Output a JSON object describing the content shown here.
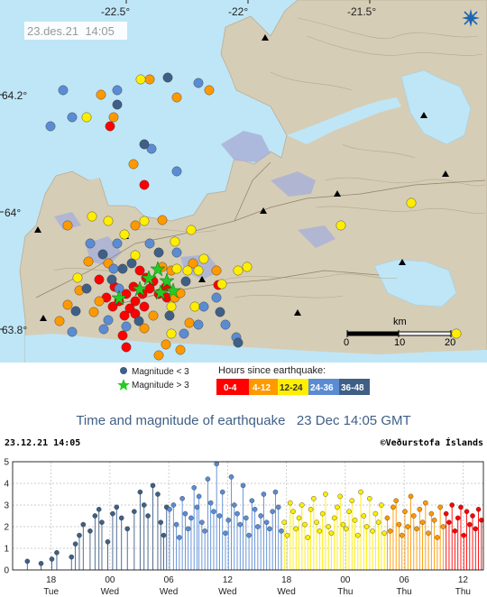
{
  "map": {
    "timestamp": "23.des.21  14:05",
    "lon_labels": [
      "-22.5°",
      "-22°",
      "-21.5°"
    ],
    "lat_labels": [
      "64.2°",
      "64°",
      "63.8°"
    ],
    "scale": {
      "unit": "km",
      "ticks": [
        "0",
        "10",
        "20"
      ]
    },
    "logo_icon": "imo-snowflake-icon",
    "colors": {
      "sea": "#bfe6f6",
      "land": "#d6cdb6",
      "ice": "#aab2d8",
      "age_0_4": "#ff0000",
      "age_4_12": "#ff9900",
      "age_12_24": "#ffee00",
      "age_24_36": "#5b8cd3",
      "age_36_48": "#3f5f86",
      "star": "#22cc22"
    }
  },
  "legend": {
    "mag_small": "Magnitude < 3",
    "mag_large": "Magnitude > 3",
    "hours_title": "Hours since earthquake:",
    "bins": [
      {
        "label": "0-4",
        "color": "#ff0000"
      },
      {
        "label": "4-12",
        "color": "#ff9900"
      },
      {
        "label": "12-24",
        "color": "#ffee00"
      },
      {
        "label": "24-36",
        "color": "#5b8cd3"
      },
      {
        "label": "36-48",
        "color": "#3f5f86"
      }
    ]
  },
  "chart_header": {
    "title": "Time and magnitude of earthquake   23 Dec 14:05 GMT",
    "timestamp": "23.12.21 14:05",
    "credit": "©Veðurstofa Íslands"
  },
  "chart_data": {
    "type": "scatter",
    "title": "Time and magnitude of earthquake   23 Dec 14:05 GMT",
    "ylim": [
      0,
      5
    ],
    "y_ticks": [
      "0",
      "1",
      "2",
      "3",
      "4",
      "5"
    ],
    "x_range_hours": [
      -48,
      0
    ],
    "x_ticks": [
      {
        "hour": -44.08,
        "time": "18",
        "day": "Tue"
      },
      {
        "hour": -38.08,
        "time": "00",
        "day": "Wed"
      },
      {
        "hour": -32.08,
        "time": "06",
        "day": "Wed"
      },
      {
        "hour": -26.08,
        "time": "12",
        "day": "Wed"
      },
      {
        "hour": -20.08,
        "time": "18",
        "day": "Wed"
      },
      {
        "hour": -14.08,
        "time": "00",
        "day": "Thu"
      },
      {
        "hour": -8.08,
        "time": "06",
        "day": "Thu"
      },
      {
        "hour": -2.08,
        "time": "12",
        "day": "Thu"
      }
    ],
    "series": [
      {
        "name": "36-48",
        "color": "#3f5f86",
        "x": [
          -46.5,
          -45.1,
          -44.0,
          -43.5,
          -42.0,
          -41.6,
          -41.2,
          -40.8,
          -40.1,
          -39.6,
          -39.2,
          -38.9,
          -38.3,
          -37.8,
          -37.4,
          -36.9,
          -36.3,
          -35.6,
          -35.0,
          -34.6,
          -34.2,
          -33.7,
          -33.2,
          -32.9,
          -32.6,
          -32.3
        ],
        "y": [
          0.4,
          0.3,
          0.5,
          0.8,
          0.6,
          1.2,
          1.6,
          2.1,
          1.8,
          2.5,
          2.8,
          2.2,
          1.3,
          2.6,
          2.9,
          2.4,
          1.9,
          2.7,
          3.6,
          3.0,
          2.5,
          3.9,
          3.5,
          2.2,
          1.6,
          2.9
        ]
      },
      {
        "name": "24-36",
        "color": "#5b8cd3",
        "x": [
          -32.0,
          -31.6,
          -31.3,
          -31.0,
          -30.7,
          -30.4,
          -30.1,
          -29.8,
          -29.5,
          -29.2,
          -29.0,
          -28.7,
          -28.4,
          -28.1,
          -27.8,
          -27.5,
          -27.2,
          -26.9,
          -26.6,
          -26.3,
          -26.0,
          -25.7,
          -25.4,
          -25.1,
          -24.8,
          -24.5,
          -24.2,
          -23.9,
          -23.6,
          -23.3,
          -23.0,
          -22.7,
          -22.4,
          -22.1,
          -21.8,
          -21.5,
          -21.2,
          -20.9,
          -20.6
        ],
        "y": [
          2.8,
          3.0,
          2.1,
          1.5,
          3.3,
          2.6,
          1.9,
          2.4,
          3.8,
          2.9,
          3.4,
          2.2,
          1.8,
          4.2,
          3.1,
          2.7,
          4.9,
          2.5,
          3.6,
          1.7,
          2.3,
          4.3,
          3.0,
          2.6,
          2.1,
          3.9,
          2.4,
          1.6,
          3.2,
          2.8,
          2.0,
          2.5,
          3.5,
          2.2,
          1.9,
          2.7,
          3.6,
          2.9,
          1.8
        ]
      },
      {
        "name": "12-24",
        "color": "#ffee00",
        "x": [
          -20.3,
          -20.0,
          -19.7,
          -19.4,
          -19.1,
          -18.8,
          -18.5,
          -18.2,
          -17.9,
          -17.6,
          -17.3,
          -17.0,
          -16.7,
          -16.4,
          -16.1,
          -15.8,
          -15.5,
          -15.2,
          -14.9,
          -14.6,
          -14.3,
          -14.0,
          -13.7,
          -13.4,
          -13.1,
          -12.8,
          -12.5,
          -12.2,
          -11.9,
          -11.6,
          -11.3,
          -11.0,
          -10.7,
          -10.4,
          -10.1
        ],
        "y": [
          2.2,
          1.6,
          3.1,
          2.7,
          1.9,
          2.4,
          3.0,
          2.1,
          1.5,
          2.8,
          3.3,
          2.2,
          1.8,
          2.6,
          3.5,
          2.0,
          1.7,
          2.4,
          2.9,
          3.4,
          2.1,
          1.9,
          2.7,
          3.2,
          2.3,
          1.6,
          3.6,
          2.5,
          2.0,
          3.3,
          1.8,
          2.6,
          2.2,
          3.0,
          1.7
        ]
      },
      {
        "name": "4-12",
        "color": "#ff9900",
        "x": [
          -9.8,
          -9.5,
          -9.2,
          -8.9,
          -8.6,
          -8.3,
          -8.0,
          -7.7,
          -7.4,
          -7.1,
          -6.8,
          -6.5,
          -6.2,
          -5.9,
          -5.6,
          -5.3,
          -5.0,
          -4.7,
          -4.4,
          -4.1
        ],
        "y": [
          2.4,
          1.8,
          2.9,
          3.2,
          2.1,
          1.6,
          2.7,
          2.0,
          3.4,
          2.5,
          1.9,
          2.8,
          2.2,
          3.1,
          1.7,
          2.6,
          2.3,
          1.5,
          2.9,
          2.0
        ]
      },
      {
        "name": "0-4",
        "color": "#ff0000",
        "x": [
          -3.8,
          -3.5,
          -3.2,
          -2.9,
          -2.6,
          -2.3,
          -2.0,
          -1.7,
          -1.4,
          -1.1,
          -0.8,
          -0.5,
          -0.2
        ],
        "y": [
          2.6,
          2.2,
          3.0,
          1.8,
          2.4,
          2.9,
          1.6,
          2.7,
          2.1,
          2.5,
          1.9,
          2.8,
          2.3
        ]
      }
    ]
  }
}
